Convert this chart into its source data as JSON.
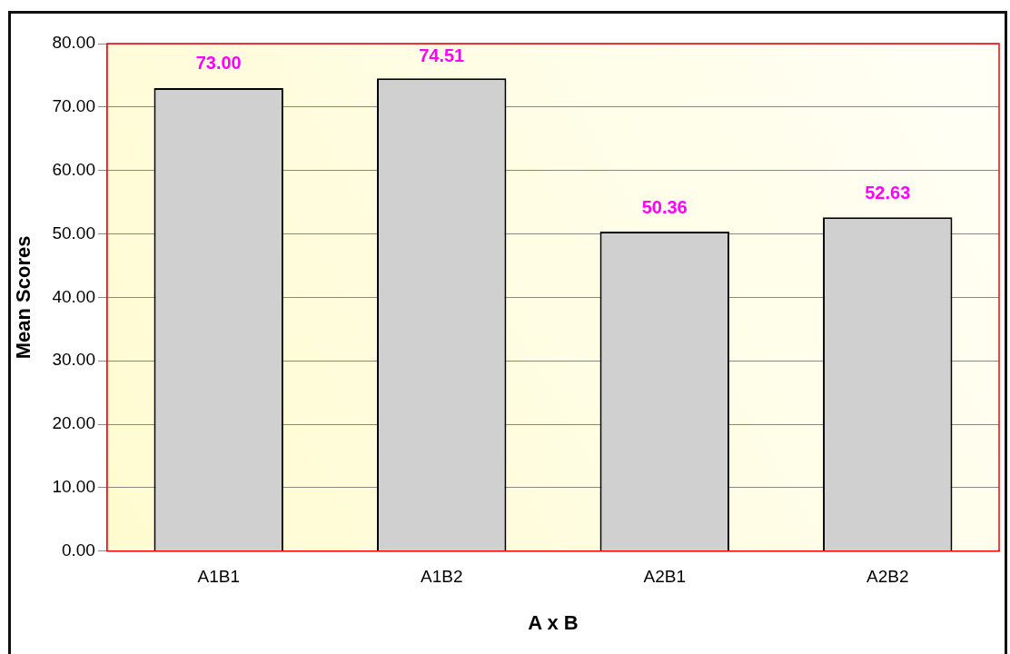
{
  "chart_data": {
    "type": "bar",
    "xlabel": "A x B",
    "ylabel": "Mean Scores",
    "categories": [
      "A1B1",
      "A1B2",
      "A2B1",
      "A2B2"
    ],
    "values": [
      73.0,
      74.51,
      50.36,
      52.63
    ],
    "color": "#d0d0d0",
    "value_labels": [
      "73.00",
      "74.51",
      "50.36",
      "52.63"
    ],
    "ylim": [
      0,
      80
    ],
    "yticks": [
      {
        "value": 0,
        "label": "0.00"
      },
      {
        "value": 10,
        "label": "10.00"
      },
      {
        "value": 20,
        "label": "20.00"
      },
      {
        "value": 30,
        "label": "30.00"
      },
      {
        "value": 40,
        "label": "40.00"
      },
      {
        "value": 50,
        "label": "50.00"
      },
      {
        "value": 60,
        "label": "60.00"
      },
      {
        "value": 70,
        "label": "70.00"
      },
      {
        "value": 80,
        "label": "80.00"
      }
    ],
    "grid": "y",
    "legend": false
  }
}
